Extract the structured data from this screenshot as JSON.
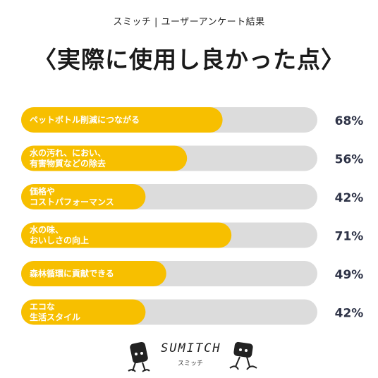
{
  "header": {
    "subtitle": "スミッチ | ユーザーアンケート結果",
    "title": "〈実際に使用し良かった点〉"
  },
  "chart_data": {
    "type": "bar",
    "orientation": "horizontal",
    "categories": [
      [
        "ペットボトル削減につながる"
      ],
      [
        "水の汚れ、におい、",
        "有害物質などの除去"
      ],
      [
        "価格や",
        "コストパフォーマンス"
      ],
      [
        "水の味、",
        "おいしさの向上"
      ],
      [
        "森林循環に貢献できる"
      ],
      [
        "エコな",
        "生活スタイル"
      ]
    ],
    "values": [
      68,
      56,
      42,
      71,
      49,
      42
    ],
    "value_labels": [
      "68%",
      "56%",
      "42%",
      "71%",
      "49%",
      "42%"
    ],
    "xlim": [
      0,
      100
    ],
    "grid": false,
    "colors": {
      "fill": "#F7BF00",
      "track": "#DCDCDC",
      "label": "#FFFFFF",
      "percent": "#2E3347"
    }
  },
  "footer": {
    "brand": "SUMITCH",
    "brand_sub": "スミッチ"
  }
}
